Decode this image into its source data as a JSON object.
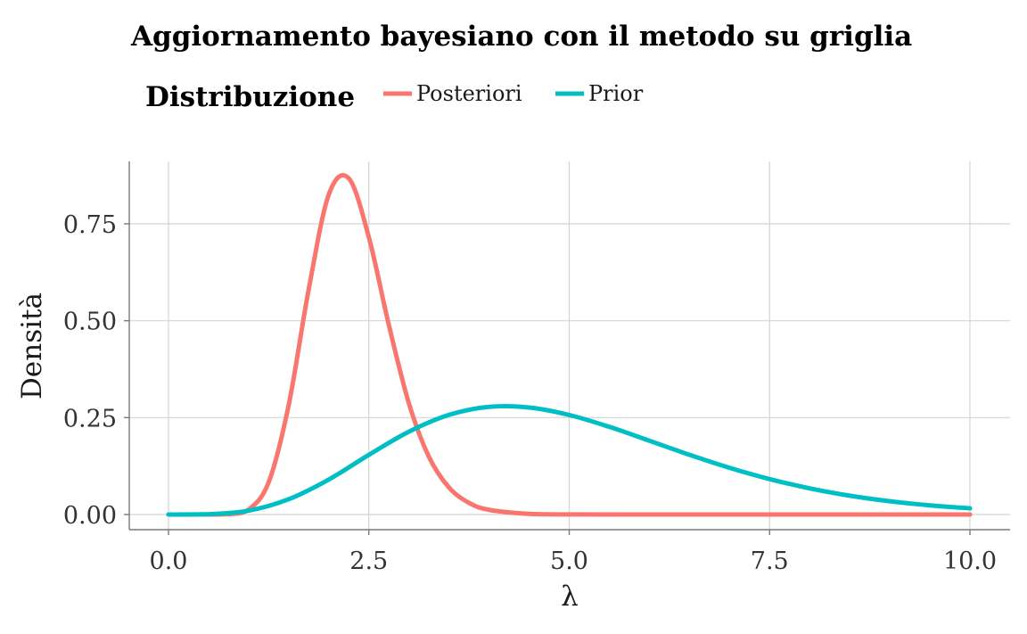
{
  "chart_data": {
    "type": "line",
    "title": "Aggiornamento bayesiano con il metodo su griglia",
    "xlabel": "λ",
    "ylabel": "Densità",
    "xlim": [
      0,
      10
    ],
    "ylim": [
      0,
      0.87
    ],
    "x_ticks": [
      "0.0",
      "2.5",
      "5.0",
      "7.5",
      "10.0"
    ],
    "x_tick_values": [
      0,
      2.5,
      5,
      7.5,
      10
    ],
    "y_ticks": [
      "0.00",
      "0.25",
      "0.50",
      "0.75"
    ],
    "y_tick_values": [
      0,
      0.25,
      0.5,
      0.75
    ],
    "grid": true,
    "legend": {
      "title": "Distribuzione",
      "position": "top"
    },
    "series": [
      {
        "name": "Posteriori",
        "color": "#F8766D",
        "x": [
          0,
          0.25,
          0.5,
          0.75,
          1.0,
          1.25,
          1.5,
          1.75,
          2.0,
          2.25,
          2.5,
          2.75,
          3.0,
          3.25,
          3.5,
          3.75,
          4.0,
          4.5,
          5.0,
          6.0,
          7.0,
          8.0,
          9.0,
          10.0
        ],
        "y": [
          0,
          0,
          0,
          0.0009,
          0.0129,
          0.0834,
          0.2827,
          0.5816,
          0.8257,
          0.8671,
          0.7153,
          0.4886,
          0.2866,
          0.1487,
          0.0697,
          0.03,
          0.0121,
          0.0016,
          0.0002,
          0,
          0,
          0,
          0,
          0
        ]
      },
      {
        "name": "Prior",
        "color": "#00BFC4",
        "x": [
          0,
          0.5,
          1.0,
          1.5,
          2.0,
          2.5,
          3.0,
          3.5,
          4.0,
          4.5,
          5.0,
          5.5,
          6.0,
          6.5,
          7.0,
          7.5,
          8.0,
          8.5,
          9.0,
          9.5,
          10.0
        ],
        "y": [
          0,
          0.0008,
          0.01,
          0.0395,
          0.0902,
          0.154,
          0.2137,
          0.257,
          0.2778,
          0.2761,
          0.2568,
          0.2262,
          0.1904,
          0.1541,
          0.1205,
          0.0914,
          0.0675,
          0.0486,
          0.0342,
          0.0236,
          0.016
        ]
      }
    ]
  }
}
